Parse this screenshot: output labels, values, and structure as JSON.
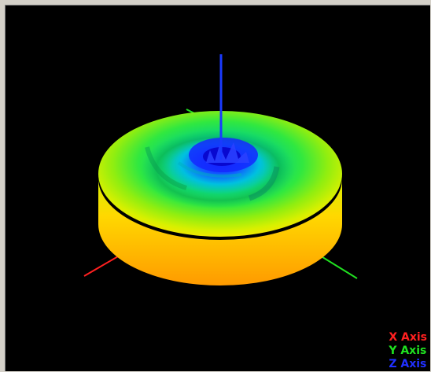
{
  "viewport": {
    "background": "#000000"
  },
  "axes": {
    "x": {
      "label": "X Axis",
      "color": "#ff2020"
    },
    "y": {
      "label": "Y Axis",
      "color": "#20e020"
    },
    "z": {
      "label": "Z Axis",
      "color": "#2030ff"
    }
  },
  "plot": {
    "type": "3d-radiation-pattern",
    "colormap": [
      "#1a20ff",
      "#00c8ff",
      "#10e060",
      "#a8f010",
      "#ffe000",
      "#ffa000"
    ]
  }
}
